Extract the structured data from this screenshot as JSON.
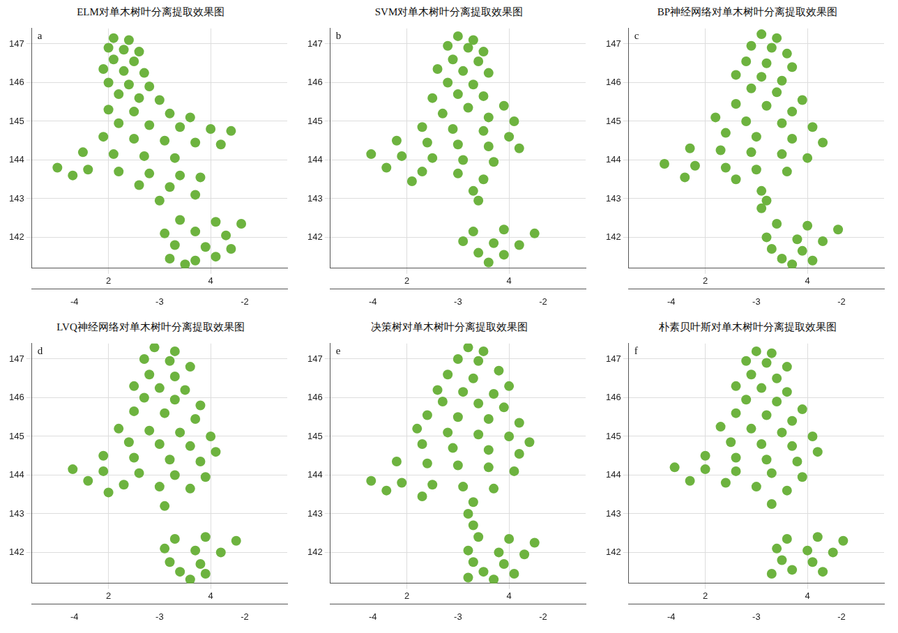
{
  "chart_data": [
    {
      "type": "scatter",
      "title": "ELM对单木树叶分离提取效果图",
      "panel_label": "a",
      "color": "#6db33f",
      "grid": true,
      "xlim": [
        0.5,
        5.5
      ],
      "xticks": [
        2,
        4
      ],
      "ylim": [
        141.2,
        147.4
      ],
      "yticks": [
        142,
        143,
        144,
        145,
        146,
        147
      ],
      "zlim": [
        -4.5,
        -1.5
      ],
      "zticks": [
        -4,
        -3,
        -2
      ],
      "x": [
        2.1,
        2.4,
        2.0,
        2.3,
        2.6,
        2.1,
        2.5,
        1.9,
        2.3,
        2.7,
        2.0,
        2.4,
        2.8,
        2.2,
        2.6,
        3.0,
        2.0,
        2.5,
        3.2,
        3.6,
        2.2,
        2.8,
        3.4,
        4.0,
        4.4,
        1.9,
        2.5,
        3.1,
        3.7,
        4.2,
        1.5,
        2.1,
        2.7,
        3.3,
        1.0,
        1.6,
        2.2,
        2.8,
        3.4,
        3.8,
        1.3,
        2.6,
        3.2,
        3.7,
        3.0,
        3.4,
        4.1,
        4.6,
        3.1,
        3.7,
        4.3,
        3.3,
        3.9,
        4.4,
        3.2,
        3.7,
        4.1,
        3.5
      ],
      "values": [
        147.15,
        147.1,
        146.9,
        146.85,
        146.8,
        146.6,
        146.55,
        146.35,
        146.3,
        146.25,
        146.0,
        145.95,
        145.9,
        145.7,
        145.6,
        145.55,
        145.3,
        145.25,
        145.2,
        145.1,
        144.95,
        144.9,
        144.85,
        144.8,
        144.75,
        144.6,
        144.55,
        144.5,
        144.45,
        144.4,
        144.2,
        144.15,
        144.1,
        144.05,
        143.8,
        143.75,
        143.7,
        143.65,
        143.6,
        143.55,
        143.6,
        143.35,
        143.3,
        143.1,
        142.95,
        142.45,
        142.4,
        142.35,
        142.1,
        142.15,
        142.05,
        141.8,
        141.75,
        141.7,
        141.45,
        141.4,
        141.5,
        141.3
      ]
    },
    {
      "type": "scatter",
      "title": "SVM对单木树叶分离提取效果图",
      "panel_label": "b",
      "color": "#6db33f",
      "grid": true,
      "xlim": [
        0.5,
        5.5
      ],
      "xticks": [
        2,
        4
      ],
      "ylim": [
        141.2,
        147.4
      ],
      "yticks": [
        142,
        143,
        144,
        145,
        146,
        147
      ],
      "zlim": [
        -4.5,
        -1.5
      ],
      "zticks": [
        -4,
        -3,
        -2
      ],
      "x": [
        3.0,
        3.3,
        2.8,
        3.2,
        3.5,
        2.9,
        3.4,
        2.6,
        3.1,
        3.6,
        2.8,
        3.3,
        3.0,
        3.5,
        2.5,
        3.9,
        3.2,
        2.7,
        3.6,
        4.1,
        2.3,
        2.9,
        3.5,
        4.0,
        1.8,
        2.4,
        3.0,
        3.6,
        4.2,
        1.3,
        1.9,
        2.5,
        3.1,
        3.7,
        1.6,
        2.3,
        3.0,
        3.5,
        2.1,
        3.3,
        3.4,
        3.3,
        3.9,
        4.5,
        3.1,
        3.7,
        4.2,
        3.4,
        3.9,
        3.6
      ],
      "values": [
        147.2,
        147.1,
        146.95,
        146.9,
        146.8,
        146.6,
        146.55,
        146.35,
        146.3,
        146.25,
        146.0,
        145.95,
        145.7,
        145.65,
        145.6,
        145.4,
        145.35,
        145.2,
        145.1,
        145.0,
        144.85,
        144.8,
        144.75,
        144.6,
        144.5,
        144.45,
        144.4,
        144.35,
        144.3,
        144.15,
        144.1,
        144.05,
        144.0,
        143.95,
        143.8,
        143.7,
        143.65,
        143.5,
        143.45,
        143.2,
        142.95,
        142.15,
        142.2,
        142.1,
        141.9,
        141.85,
        141.8,
        141.6,
        141.55,
        141.35
      ]
    },
    {
      "type": "scatter",
      "title": "BP神经网络对单木树叶分离提取效果图",
      "panel_label": "c",
      "color": "#6db33f",
      "grid": true,
      "xlim": [
        0.5,
        5.5
      ],
      "xticks": [
        2,
        4
      ],
      "ylim": [
        141.2,
        147.4
      ],
      "yticks": [
        142,
        143,
        144,
        145,
        146,
        147
      ],
      "zlim": [
        -4.5,
        -1.5
      ],
      "zticks": [
        -4,
        -3,
        -2
      ],
      "x": [
        3.1,
        3.4,
        2.9,
        3.3,
        3.6,
        2.8,
        3.2,
        3.7,
        2.6,
        3.1,
        3.5,
        2.9,
        3.4,
        3.9,
        2.6,
        3.2,
        3.7,
        2.2,
        2.8,
        3.5,
        4.1,
        2.4,
        3.0,
        3.7,
        4.3,
        1.7,
        2.3,
        2.9,
        3.5,
        4.0,
        1.2,
        1.8,
        2.4,
        3.0,
        3.6,
        1.6,
        2.6,
        3.1,
        3.2,
        3.1,
        3.4,
        4.0,
        4.6,
        3.2,
        3.8,
        4.3,
        3.3,
        3.9,
        3.5,
        4.1,
        3.7
      ],
      "values": [
        147.25,
        147.15,
        146.95,
        146.9,
        146.75,
        146.55,
        146.5,
        146.4,
        146.2,
        146.15,
        146.05,
        145.85,
        145.75,
        145.55,
        145.45,
        145.4,
        145.25,
        145.1,
        145.0,
        144.95,
        144.85,
        144.7,
        144.6,
        144.55,
        144.45,
        144.3,
        144.25,
        144.2,
        144.15,
        144.05,
        143.9,
        143.85,
        143.8,
        143.75,
        143.7,
        143.55,
        143.5,
        143.2,
        142.95,
        142.75,
        142.35,
        142.3,
        142.2,
        142.0,
        141.95,
        141.9,
        141.7,
        141.65,
        141.45,
        141.4,
        141.3
      ]
    },
    {
      "type": "scatter",
      "title": "LVQ神经网络对单木树叶分离提取效果图",
      "panel_label": "d",
      "color": "#6db33f",
      "grid": true,
      "xlim": [
        0.5,
        5.5
      ],
      "xticks": [
        2,
        4
      ],
      "ylim": [
        141.2,
        147.4
      ],
      "yticks": [
        142,
        143,
        144,
        145,
        146,
        147
      ],
      "zlim": [
        -4.5,
        -1.5
      ],
      "zticks": [
        -4,
        -3,
        -2
      ],
      "x": [
        2.9,
        3.3,
        2.7,
        3.2,
        3.6,
        2.8,
        3.3,
        2.5,
        3.0,
        3.5,
        2.7,
        3.3,
        3.8,
        2.5,
        3.1,
        3.7,
        2.2,
        2.8,
        3.4,
        4.0,
        2.4,
        3.0,
        3.6,
        4.1,
        1.9,
        2.5,
        3.2,
        3.8,
        1.3,
        1.9,
        2.6,
        3.3,
        3.9,
        1.6,
        2.3,
        3.0,
        3.6,
        2.0,
        3.1,
        3.3,
        3.9,
        4.5,
        3.1,
        3.7,
        4.2,
        3.2,
        3.8,
        3.4,
        3.9,
        3.6
      ],
      "values": [
        147.3,
        147.2,
        147.0,
        146.95,
        146.8,
        146.6,
        146.55,
        146.3,
        146.25,
        146.2,
        146.0,
        145.95,
        145.8,
        145.65,
        145.6,
        145.45,
        145.2,
        145.15,
        145.1,
        145.0,
        144.85,
        144.8,
        144.75,
        144.6,
        144.5,
        144.45,
        144.4,
        144.35,
        144.15,
        144.1,
        144.05,
        144.0,
        143.95,
        143.85,
        143.75,
        143.7,
        143.65,
        143.55,
        143.2,
        142.35,
        142.4,
        142.3,
        142.1,
        142.05,
        142.0,
        141.75,
        141.7,
        141.5,
        141.45,
        141.3
      ]
    },
    {
      "type": "scatter",
      "title": "决策树对单木树叶分离提取效果图",
      "panel_label": "e",
      "color": "#6db33f",
      "grid": true,
      "xlim": [
        0.5,
        5.5
      ],
      "xticks": [
        2,
        4
      ],
      "ylim": [
        141.2,
        147.4
      ],
      "yticks": [
        142,
        143,
        144,
        145,
        146,
        147
      ],
      "zlim": [
        -4.5,
        -1.5
      ],
      "zticks": [
        -4,
        -3,
        -2
      ],
      "x": [
        3.2,
        3.5,
        3.0,
        3.4,
        3.8,
        2.8,
        3.3,
        2.6,
        3.1,
        3.7,
        4.0,
        2.7,
        3.4,
        3.9,
        2.4,
        3.0,
        3.6,
        4.2,
        2.2,
        2.8,
        3.4,
        4.0,
        4.4,
        2.3,
        2.9,
        3.6,
        4.2,
        1.8,
        2.4,
        3.0,
        3.6,
        4.1,
        1.3,
        1.9,
        2.5,
        3.1,
        3.7,
        1.6,
        2.3,
        3.3,
        3.2,
        3.3,
        3.4,
        4.0,
        4.5,
        3.2,
        3.8,
        4.3,
        3.3,
        3.9,
        3.5,
        4.1,
        3.2,
        3.7
      ],
      "values": [
        147.3,
        147.2,
        147.0,
        146.95,
        146.7,
        146.6,
        146.5,
        146.2,
        146.15,
        146.1,
        146.3,
        145.9,
        145.85,
        145.75,
        145.55,
        145.5,
        145.45,
        145.35,
        145.2,
        145.1,
        145.05,
        145.0,
        144.85,
        144.8,
        144.7,
        144.65,
        144.55,
        144.35,
        144.3,
        144.25,
        144.2,
        144.1,
        143.85,
        143.8,
        143.75,
        143.7,
        143.65,
        143.6,
        143.45,
        143.3,
        143.0,
        142.7,
        142.4,
        142.35,
        142.25,
        142.05,
        142.0,
        141.95,
        141.75,
        141.7,
        141.5,
        141.45,
        141.35,
        141.3
      ]
    },
    {
      "type": "scatter",
      "title": "朴素贝叶斯对单木树叶分离提取效果图",
      "panel_label": "f",
      "color": "#6db33f",
      "grid": true,
      "xlim": [
        0.5,
        5.5
      ],
      "xticks": [
        2,
        4
      ],
      "ylim": [
        141.2,
        147.4
      ],
      "yticks": [
        142,
        143,
        144,
        145,
        146,
        147
      ],
      "zlim": [
        -4.5,
        -1.5
      ],
      "zticks": [
        -4,
        -3,
        -2
      ],
      "x": [
        3.0,
        3.3,
        2.8,
        3.2,
        3.6,
        2.9,
        3.4,
        2.6,
        3.1,
        3.6,
        2.8,
        3.4,
        3.9,
        2.6,
        3.2,
        3.7,
        2.3,
        2.9,
        3.5,
        4.1,
        2.5,
        3.1,
        3.7,
        4.2,
        2.0,
        2.6,
        3.2,
        3.8,
        1.4,
        2.0,
        2.6,
        3.3,
        3.9,
        1.7,
        2.4,
        3.0,
        3.6,
        3.3,
        3.6,
        4.2,
        4.7,
        3.4,
        4.0,
        4.5,
        3.5,
        4.1,
        3.7,
        4.3,
        3.3
      ],
      "values": [
        147.2,
        147.15,
        146.95,
        146.9,
        146.8,
        146.6,
        146.5,
        146.3,
        146.25,
        146.15,
        145.95,
        145.9,
        145.7,
        145.6,
        145.55,
        145.4,
        145.25,
        145.2,
        145.1,
        145.0,
        144.85,
        144.8,
        144.75,
        144.6,
        144.5,
        144.45,
        144.4,
        144.35,
        144.2,
        144.15,
        144.1,
        144.05,
        143.95,
        143.85,
        143.8,
        143.7,
        143.6,
        143.25,
        142.35,
        142.4,
        142.3,
        142.1,
        142.05,
        142.0,
        141.8,
        141.75,
        141.55,
        141.5,
        141.45
      ]
    }
  ]
}
